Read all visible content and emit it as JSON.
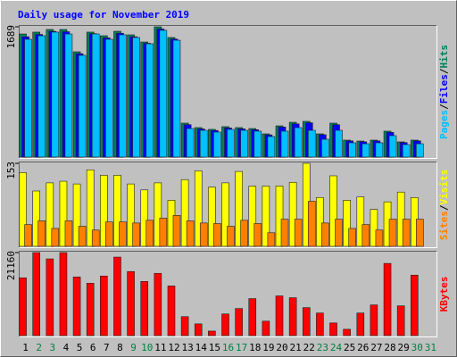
{
  "chart_data": [
    {
      "type": "bar",
      "title": "Daily usage for November 2019",
      "ylim": [
        0,
        1689
      ],
      "yticks": [
        1689
      ],
      "legend_separator": "/",
      "series": [
        {
          "name": "Hits",
          "color": "#00805c",
          "values": [
            1596,
            1620,
            1654,
            1654,
            1365,
            1620,
            1573,
            1631,
            1585,
            1492,
            1689,
            1550,
            440,
            382,
            359,
            394,
            382,
            370,
            301,
            405,
            451,
            463,
            301,
            440,
            220,
            208,
            220,
            336,
            197,
            220,
            null
          ]
        },
        {
          "name": "Files",
          "color": "#0000ff",
          "values": [
            1560,
            1590,
            1630,
            1625,
            1340,
            1600,
            1545,
            1605,
            1560,
            1475,
            1660,
            1530,
            420,
            365,
            345,
            378,
            366,
            355,
            288,
            390,
            430,
            445,
            290,
            420,
            210,
            198,
            210,
            320,
            188,
            210,
            null
          ]
        },
        {
          "name": "Pages",
          "color": "#00c0ff",
          "values": [
            1527,
            1573,
            1620,
            1596,
            1319,
            1596,
            1527,
            1585,
            1550,
            1469,
            1643,
            1515,
            370,
            347,
            324,
            359,
            347,
            336,
            266,
            336,
            382,
            347,
            231,
            347,
            185,
            173,
            185,
            278,
            162,
            173,
            null
          ]
        }
      ]
    },
    {
      "type": "bar",
      "ylim": [
        0,
        153
      ],
      "yticks": [
        153
      ],
      "legend_separator": "/",
      "series": [
        {
          "name": "Visits",
          "color": "#ffff00",
          "values": [
            136,
            102,
            117,
            120,
            115,
            141,
            131,
            131,
            115,
            104,
            117,
            85,
            123,
            139,
            109,
            117,
            138,
            111,
            111,
            111,
            118,
            153,
            90,
            130,
            85,
            91,
            68,
            82,
            100,
            90,
            null
          ]
        },
        {
          "name": "Sites",
          "color": "#ff8000",
          "values": [
            40,
            47,
            33,
            47,
            37,
            30,
            45,
            45,
            43,
            48,
            52,
            57,
            47,
            43,
            42,
            37,
            48,
            42,
            25,
            50,
            50,
            83,
            43,
            50,
            33,
            40,
            30,
            50,
            50,
            50,
            null
          ]
        }
      ]
    },
    {
      "type": "bar",
      "ylim": [
        0,
        21160
      ],
      "yticks": [
        21160
      ],
      "categories": [
        "1",
        "2",
        "3",
        "4",
        "5",
        "6",
        "7",
        "8",
        "9",
        "10",
        "11",
        "12",
        "13",
        "14",
        "15",
        "16",
        "17",
        "18",
        "19",
        "20",
        "21",
        "22",
        "23",
        "24",
        "25",
        "26",
        "27",
        "28",
        "29",
        "30",
        "31"
      ],
      "category_colors": [
        "#000000",
        "#008040",
        "#008040",
        "#000000",
        "#000000",
        "#000000",
        "#000000",
        "#000000",
        "#008040",
        "#008040",
        "#000000",
        "#000000",
        "#000000",
        "#000000",
        "#000000",
        "#008040",
        "#008040",
        "#000000",
        "#000000",
        "#000000",
        "#000000",
        "#000000",
        "#008040",
        "#008040",
        "#000000",
        "#000000",
        "#000000",
        "#000000",
        "#000000",
        "#008040",
        "#008040"
      ],
      "series": [
        {
          "name": "KBytes",
          "color": "#ff0000",
          "values": [
            14720,
            21160,
            19550,
            21160,
            14950,
            13340,
            15180,
            20010,
            16330,
            13800,
            15870,
            12650,
            4830,
            2990,
            1150,
            5520,
            6900,
            9430,
            3680,
            10120,
            9660,
            7130,
            5750,
            3220,
            1610,
            5750,
            7820,
            18400,
            7590,
            15410,
            null
          ]
        }
      ]
    }
  ]
}
